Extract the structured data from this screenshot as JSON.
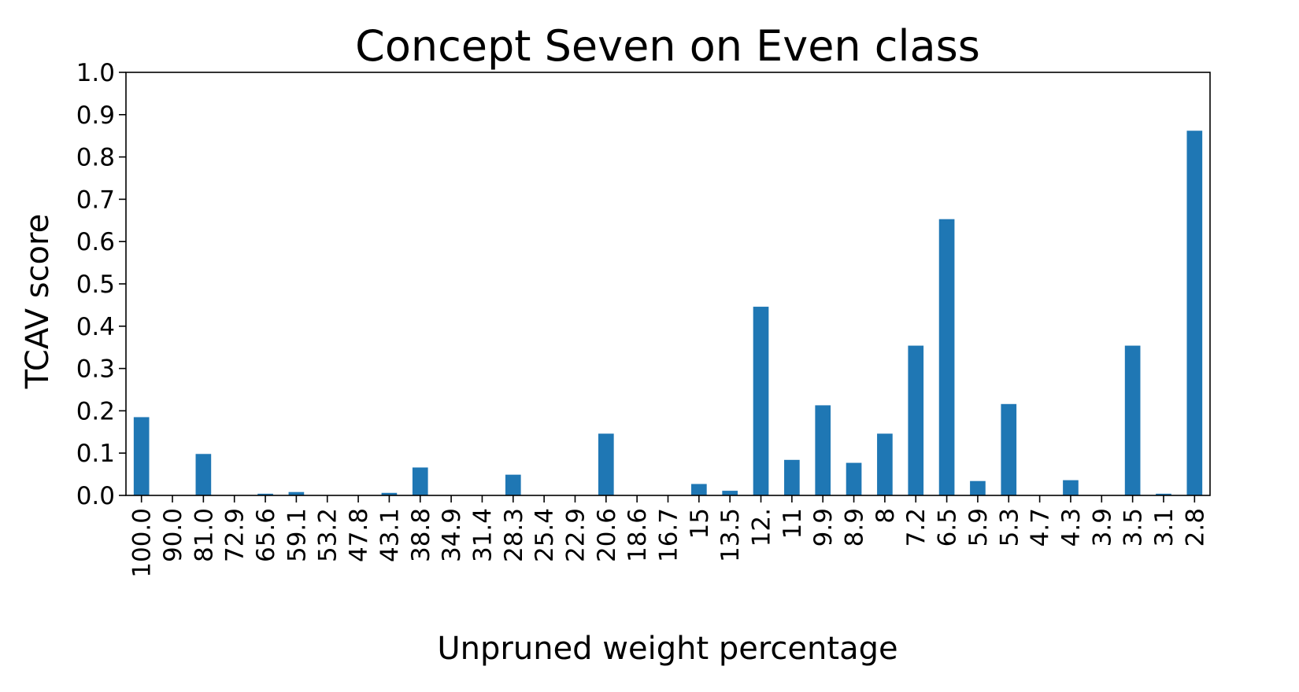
{
  "chart_data": {
    "type": "bar",
    "title": "Concept Seven on Even class",
    "xlabel": "Unpruned weight percentage",
    "ylabel": "TCAV score",
    "ylim": [
      0.0,
      1.0
    ],
    "yticks": [
      "0.0",
      "0.1",
      "0.2",
      "0.3",
      "0.4",
      "0.5",
      "0.6",
      "0.7",
      "0.8",
      "0.9",
      "1.0"
    ],
    "grid": false,
    "legend": "none",
    "bar_color": "#1f77b4",
    "categories": [
      "100.0",
      "90.0",
      "81.0",
      "72.9",
      "65.6",
      "59.1",
      "53.2",
      "47.8",
      "43.1",
      "38.8",
      "34.9",
      "31.4",
      "28.3",
      "25.4",
      "22.9",
      "20.6",
      "18.6",
      "16.7",
      "15",
      "13.5",
      "12.",
      "11",
      "9.9",
      "8.9",
      "8",
      "7.2",
      "6.5",
      "5.9",
      "5.3",
      "4.7",
      "4.3",
      "3.9",
      "3.5",
      "3.1",
      "2.8"
    ],
    "values": [
      0.185,
      0.0,
      0.098,
      0.0,
      0.004,
      0.008,
      0.0,
      0.0,
      0.006,
      0.066,
      0.0,
      0.0,
      0.049,
      0.0,
      0.0,
      0.146,
      0.0,
      0.0,
      0.027,
      0.011,
      0.446,
      0.084,
      0.213,
      0.077,
      0.146,
      0.354,
      0.653,
      0.034,
      0.216,
      0.0,
      0.036,
      0.0,
      0.354,
      0.004,
      0.862
    ]
  }
}
